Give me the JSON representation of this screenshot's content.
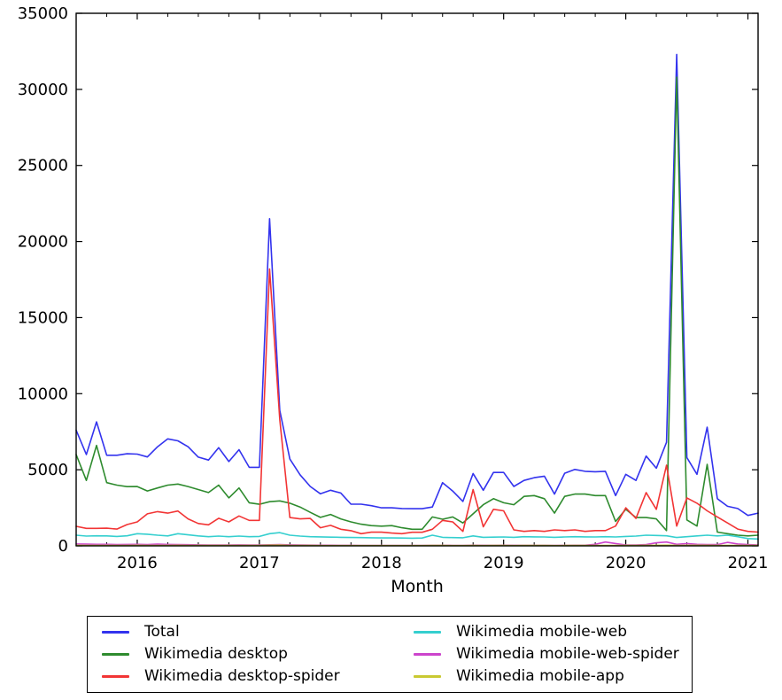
{
  "chart_data": {
    "type": "line",
    "title": "",
    "xlabel": "Month",
    "ylabel": "",
    "ylim": [
      0,
      35000
    ],
    "grid": false,
    "legend_position": "below",
    "yticks": [
      0,
      5000,
      10000,
      15000,
      20000,
      25000,
      30000,
      35000
    ],
    "xticks": [
      {
        "label": "2016",
        "month_index": 6
      },
      {
        "label": "2017",
        "month_index": 18
      },
      {
        "label": "2018",
        "month_index": 30
      },
      {
        "label": "2019",
        "month_index": 42
      },
      {
        "label": "2020",
        "month_index": 54
      },
      {
        "label": "2021",
        "month_index": 66
      }
    ],
    "months": [
      "2015-07",
      "2015-08",
      "2015-09",
      "2015-10",
      "2015-11",
      "2015-12",
      "2016-01",
      "2016-02",
      "2016-03",
      "2016-04",
      "2016-05",
      "2016-06",
      "2016-07",
      "2016-08",
      "2016-09",
      "2016-10",
      "2016-11",
      "2016-12",
      "2017-01",
      "2017-02",
      "2017-03",
      "2017-04",
      "2017-05",
      "2017-06",
      "2017-07",
      "2017-08",
      "2017-09",
      "2017-10",
      "2017-11",
      "2017-12",
      "2018-01",
      "2018-02",
      "2018-03",
      "2018-04",
      "2018-05",
      "2018-06",
      "2018-07",
      "2018-08",
      "2018-09",
      "2018-10",
      "2018-11",
      "2018-12",
      "2019-01",
      "2019-02",
      "2019-03",
      "2019-04",
      "2019-05",
      "2019-06",
      "2019-07",
      "2019-08",
      "2019-09",
      "2019-10",
      "2019-11",
      "2019-12",
      "2020-01",
      "2020-02",
      "2020-03",
      "2020-04",
      "2020-05",
      "2020-06",
      "2020-07",
      "2020-08",
      "2020-09",
      "2020-10",
      "2020-11",
      "2020-12",
      "2021-01",
      "2021-02"
    ],
    "series": [
      {
        "name": "Total",
        "color": "#3333ee",
        "values": [
          7600,
          6000,
          8150,
          5950,
          5950,
          6050,
          6030,
          5840,
          6510,
          7030,
          6900,
          6510,
          5830,
          5640,
          6450,
          5540,
          6320,
          5160,
          5160,
          21500,
          8900,
          5700,
          4670,
          3900,
          3420,
          3650,
          3470,
          2740,
          2740,
          2640,
          2500,
          2500,
          2450,
          2440,
          2440,
          2550,
          4150,
          3600,
          2920,
          4750,
          3650,
          4820,
          4820,
          3900,
          4300,
          4480,
          4580,
          3400,
          4770,
          5020,
          4900,
          4870,
          4900,
          3300,
          4700,
          4300,
          5900,
          5100,
          6800,
          32300,
          5800,
          4700,
          7800,
          3100,
          2600,
          2450,
          2000,
          2150
        ]
      },
      {
        "name": "Wikimedia desktop",
        "color": "#2e8b2e",
        "values": [
          6000,
          4300,
          6600,
          4150,
          3990,
          3890,
          3895,
          3605,
          3800,
          3990,
          4060,
          3895,
          3700,
          3500,
          3990,
          3150,
          3800,
          2830,
          2730,
          2900,
          2950,
          2800,
          2550,
          2200,
          1870,
          2060,
          1770,
          1575,
          1420,
          1330,
          1290,
          1330,
          1190,
          1090,
          1090,
          1900,
          1750,
          1900,
          1500,
          2100,
          2700,
          3100,
          2830,
          2700,
          3250,
          3300,
          3100,
          2150,
          3250,
          3400,
          3400,
          3300,
          3300,
          1600,
          2400,
          1860,
          1860,
          1770,
          1000,
          30800,
          1700,
          1300,
          5350,
          900,
          800,
          700,
          650,
          700
        ]
      },
      {
        "name": "Wikimedia desktop-spider",
        "color": "#f23535",
        "values": [
          1280,
          1150,
          1150,
          1160,
          1100,
          1400,
          1570,
          2100,
          2250,
          2150,
          2290,
          1770,
          1470,
          1380,
          1810,
          1570,
          1960,
          1670,
          1670,
          18200,
          8300,
          1860,
          1770,
          1800,
          1190,
          1345,
          1090,
          995,
          800,
          895,
          895,
          840,
          800,
          890,
          890,
          1090,
          1670,
          1570,
          950,
          3700,
          1250,
          2400,
          2300,
          1050,
          950,
          1000,
          950,
          1050,
          1000,
          1050,
          950,
          1000,
          1000,
          1300,
          2500,
          1800,
          3500,
          2400,
          5300,
          1300,
          3150,
          2800,
          2300,
          1900,
          1500,
          1100,
          950,
          900
        ]
      },
      {
        "name": "Wikimedia mobile-web",
        "color": "#35cfcf",
        "values": [
          700,
          640,
          660,
          650,
          620,
          660,
          800,
          760,
          700,
          650,
          800,
          720,
          650,
          600,
          640,
          600,
          640,
          600,
          620,
          800,
          870,
          700,
          640,
          600,
          590,
          570,
          560,
          550,
          540,
          530,
          520,
          520,
          510,
          500,
          510,
          700,
          560,
          540,
          530,
          650,
          560,
          570,
          580,
          560,
          600,
          590,
          580,
          560,
          580,
          600,
          590,
          580,
          600,
          580,
          620,
          640,
          700,
          680,
          660,
          550,
          600,
          650,
          700,
          650,
          700,
          600,
          480,
          450
        ]
      },
      {
        "name": "Wikimedia mobile-web-spider",
        "color": "#cc44cc",
        "values": [
          120,
          110,
          100,
          100,
          90,
          95,
          100,
          90,
          110,
          95,
          85,
          75,
          65,
          60,
          55,
          55,
          65,
          55,
          55,
          70,
          90,
          65,
          55,
          45,
          40,
          40,
          35,
          35,
          30,
          30,
          30,
          30,
          30,
          30,
          30,
          35,
          35,
          30,
          30,
          40,
          35,
          35,
          40,
          35,
          35,
          35,
          35,
          30,
          35,
          40,
          40,
          100,
          250,
          150,
          60,
          60,
          80,
          200,
          250,
          100,
          150,
          100,
          80,
          80,
          230,
          120,
          80,
          60
        ]
      },
      {
        "name": "Wikimedia mobile-app",
        "color": "#c9c932",
        "values": [
          35,
          30,
          30,
          30,
          30,
          30,
          35,
          30,
          30,
          30,
          35,
          30,
          30,
          25,
          30,
          25,
          30,
          25,
          25,
          40,
          45,
          30,
          25,
          25,
          20,
          20,
          20,
          20,
          20,
          20,
          20,
          20,
          20,
          20,
          20,
          25,
          25,
          20,
          20,
          25,
          20,
          25,
          25,
          20,
          25,
          25,
          25,
          20,
          25,
          25,
          25,
          25,
          30,
          25,
          30,
          30,
          35,
          35,
          40,
          30,
          35,
          35,
          35,
          30,
          30,
          25,
          25,
          25
        ]
      }
    ]
  }
}
